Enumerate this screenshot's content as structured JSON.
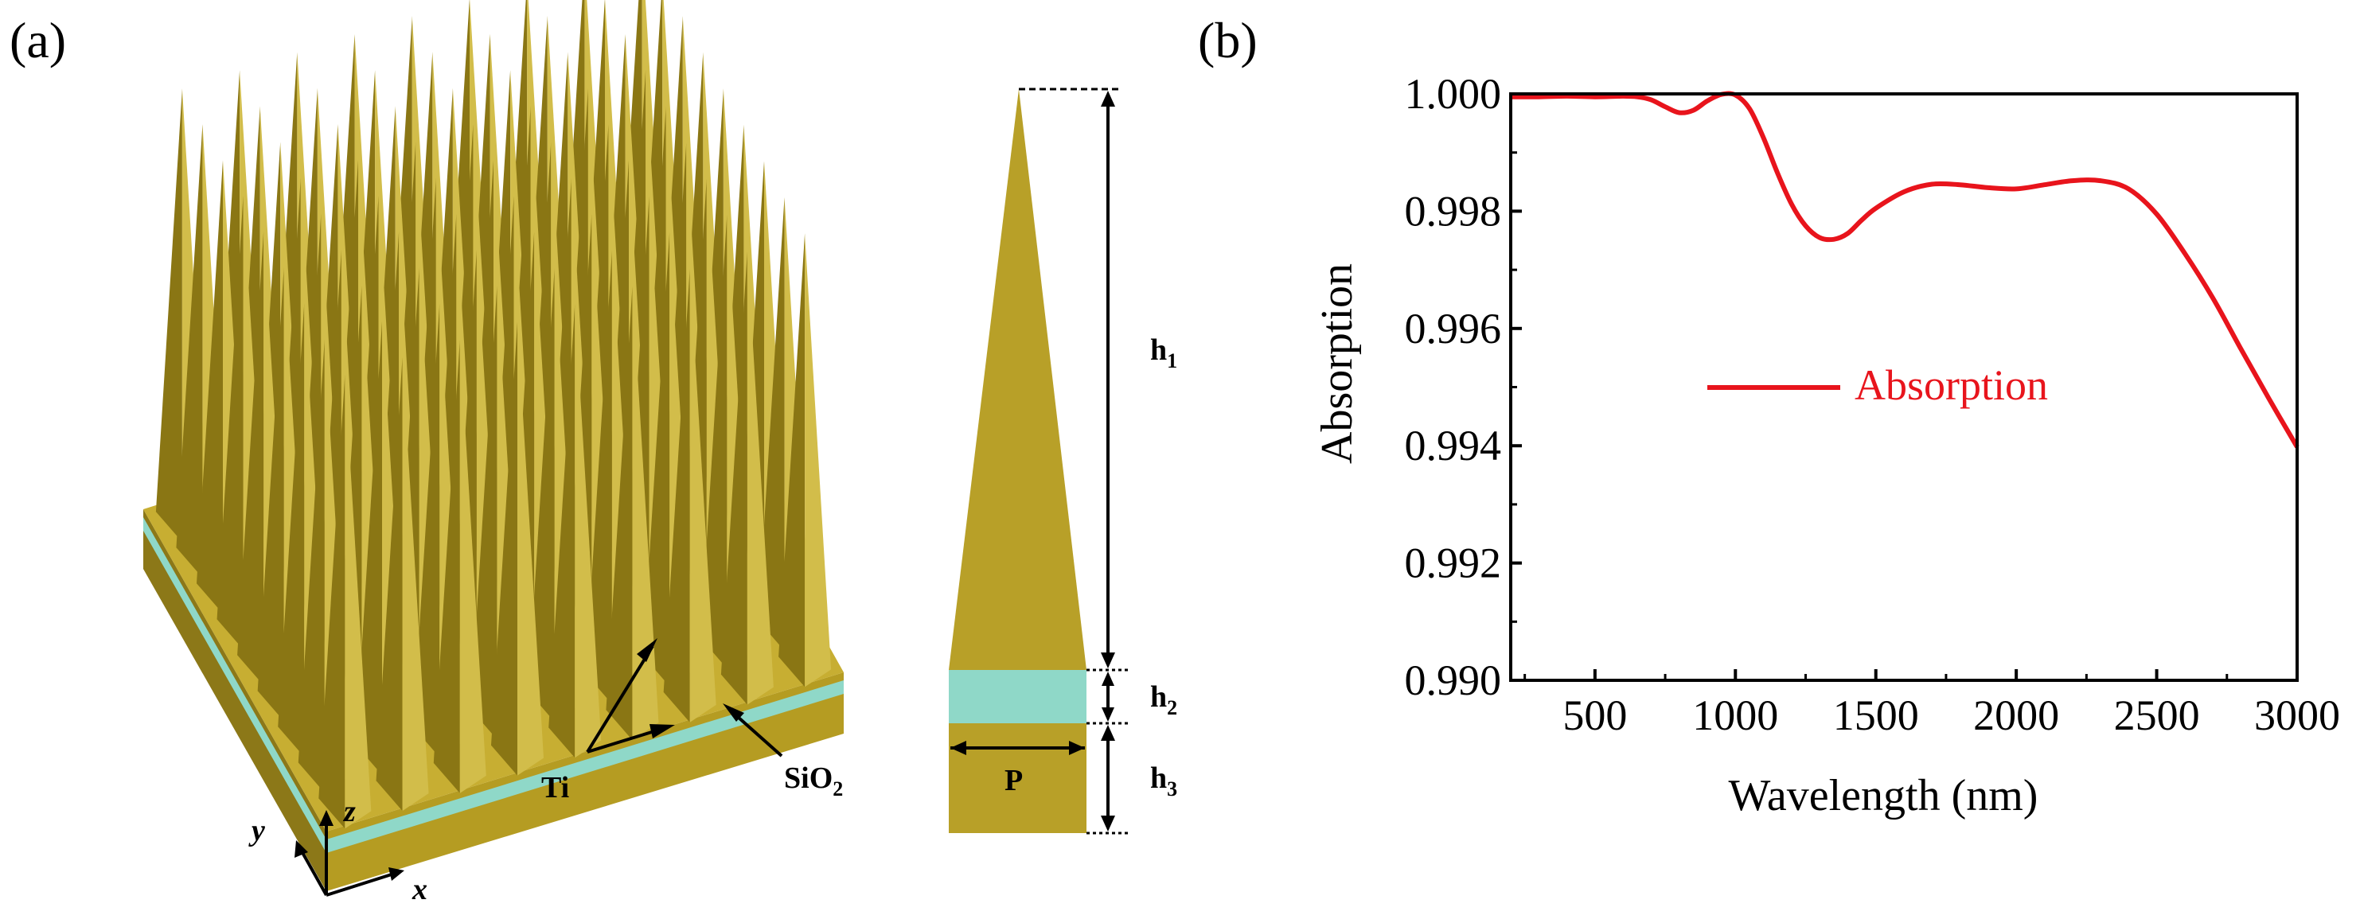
{
  "panel_a": {
    "label": "(a)",
    "materials": {
      "ti": "Ti",
      "sio2": "SiO",
      "sio2_sub": "2"
    },
    "axes": {
      "x": "x",
      "y": "y",
      "z": "z"
    },
    "dims": {
      "h1": "h",
      "h1_sub": "1",
      "h2": "h",
      "h2_sub": "2",
      "h3": "h",
      "h3_sub": "3",
      "p": "P"
    },
    "colors": {
      "ti": "#b8a028",
      "ti_dark": "#8a7614",
      "ti_light": "#d2bd4a",
      "sio2": "#8fd8c8"
    }
  },
  "panel_b": {
    "label": "(b)"
  },
  "chart_data": {
    "type": "line",
    "xlabel": "Wavelength (nm)",
    "ylabel": "Absorption",
    "xlim": [
      200,
      3000
    ],
    "ylim": [
      0.99,
      1.0
    ],
    "xticks": [
      500,
      1000,
      1500,
      2000,
      2500,
      3000
    ],
    "xtick_labels": [
      "500",
      "1000",
      "1500",
      "2000",
      "2500",
      "3000"
    ],
    "yticks": [
      0.99,
      0.992,
      0.994,
      0.996,
      0.998,
      1.0
    ],
    "ytick_labels": [
      "0.990",
      "0.992",
      "0.994",
      "0.996",
      "0.998",
      "1.000"
    ],
    "legend": {
      "label": "Absorption",
      "placement": "center-right"
    },
    "series": [
      {
        "name": "Absorption",
        "color": "#e8141c",
        "x": [
          200,
          300,
          400,
          500,
          600,
          650,
          700,
          750,
          800,
          850,
          900,
          950,
          1000,
          1050,
          1100,
          1150,
          1200,
          1250,
          1300,
          1350,
          1400,
          1450,
          1500,
          1600,
          1700,
          1800,
          1900,
          2000,
          2100,
          2200,
          2300,
          2400,
          2500,
          2600,
          2700,
          2800,
          2900,
          3000
        ],
        "y": [
          0.99995,
          0.99995,
          0.99996,
          0.99995,
          0.99996,
          0.99995,
          0.9999,
          0.99978,
          0.99968,
          0.99972,
          0.99988,
          0.99999,
          0.99998,
          0.99975,
          0.99925,
          0.99865,
          0.99812,
          0.99775,
          0.99755,
          0.99752,
          0.99762,
          0.99785,
          0.99805,
          0.99833,
          0.99846,
          0.99845,
          0.9984,
          0.99838,
          0.99845,
          0.99852,
          0.99852,
          0.99838,
          0.99795,
          0.99728,
          0.99652,
          0.99565,
          0.9948,
          0.99398
        ]
      }
    ]
  }
}
